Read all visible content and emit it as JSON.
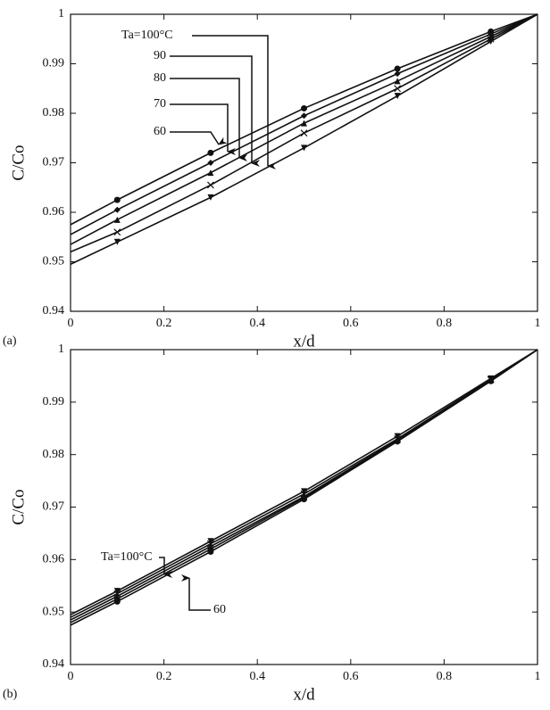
{
  "chart_data": [
    {
      "type": "line",
      "label": "(a)",
      "xlabel": "x/d",
      "ylabel": "C/Co",
      "x": [
        0,
        0.1,
        0.3,
        0.5,
        0.7,
        0.9,
        1
      ],
      "xlim": [
        0,
        1
      ],
      "ylim": [
        0.94,
        1
      ],
      "xticks": [
        0,
        0.2,
        0.4,
        0.6,
        0.8,
        1
      ],
      "yticks": [
        0.94,
        0.95,
        0.96,
        0.97,
        0.98,
        0.99,
        1
      ],
      "series": [
        {
          "name": "60",
          "color": "#111111",
          "marker": "circle",
          "values": [
            0.9575,
            0.9625,
            0.972,
            0.981,
            0.989,
            0.9965,
            1
          ]
        },
        {
          "name": "70",
          "color": "#111111",
          "marker": "diamond",
          "values": [
            0.9555,
            0.9605,
            0.97,
            0.9795,
            0.988,
            0.996,
            1
          ]
        },
        {
          "name": "80",
          "color": "#111111",
          "marker": "triangle-up",
          "values": [
            0.9535,
            0.9585,
            0.968,
            0.978,
            0.9865,
            0.9955,
            1
          ]
        },
        {
          "name": "90",
          "color": "#111111",
          "marker": "x",
          "values": [
            0.952,
            0.956,
            0.9655,
            0.976,
            0.985,
            0.995,
            1
          ]
        },
        {
          "name": "Ta=100°C",
          "color": "#111111",
          "marker": "triangle-down",
          "values": [
            0.9495,
            0.954,
            0.963,
            0.973,
            0.9835,
            0.9945,
            1
          ]
        }
      ]
    },
    {
      "type": "line",
      "label": "(b)",
      "xlabel": "x/d",
      "ylabel": "C/Co",
      "x": [
        0,
        0.1,
        0.3,
        0.5,
        0.7,
        0.9,
        1
      ],
      "xlim": [
        0,
        1
      ],
      "ylim": [
        0.94,
        1
      ],
      "xticks": [
        0,
        0.2,
        0.4,
        0.6,
        0.8,
        1
      ],
      "yticks": [
        0.94,
        0.95,
        0.96,
        0.97,
        0.98,
        0.99,
        1
      ],
      "series": [
        {
          "name": "Ta=100°C",
          "color": "#111111",
          "marker": "triangle-down",
          "values": [
            0.9495,
            0.954,
            0.9635,
            0.973,
            0.9835,
            0.9945,
            1
          ]
        },
        {
          "color": "#111111",
          "marker": "x",
          "values": [
            0.949,
            0.9535,
            0.963,
            0.9725,
            0.983,
            0.9943,
            1
          ]
        },
        {
          "color": "#111111",
          "marker": "triangle-up",
          "values": [
            0.9485,
            0.953,
            0.9625,
            0.972,
            0.9828,
            0.9942,
            1
          ]
        },
        {
          "color": "#111111",
          "marker": "diamond",
          "values": [
            0.948,
            0.9525,
            0.962,
            0.9718,
            0.9826,
            0.9941,
            1
          ]
        },
        {
          "name": "60",
          "color": "#111111",
          "marker": "circle",
          "values": [
            0.9475,
            0.952,
            0.9615,
            0.9715,
            0.9825,
            0.994,
            1
          ]
        }
      ]
    }
  ]
}
